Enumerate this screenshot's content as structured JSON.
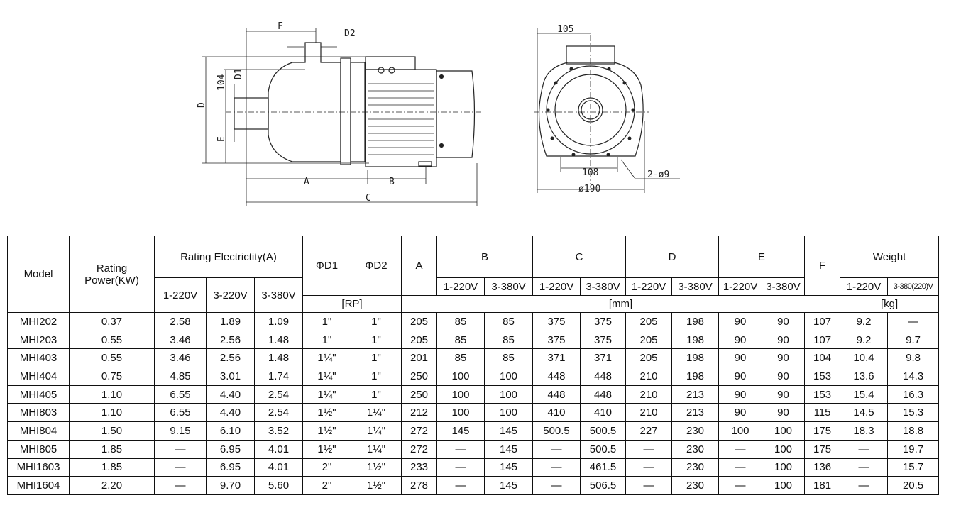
{
  "drawing": {
    "side_labels": {
      "F": "F",
      "D2": "D2",
      "D1": "D1",
      "h104": "104",
      "D": "D",
      "E": "E",
      "A": "A",
      "B": "B",
      "C": "C"
    },
    "front_labels": {
      "w105": "105",
      "w108": "108",
      "d190": "ø190",
      "holes": "2-ø9"
    }
  },
  "table": {
    "headers": {
      "model": "Model",
      "power": "Rating Power(KW)",
      "current": "Rating Electrictity(A)",
      "d1": "ΦD1",
      "d2": "ΦD2",
      "a": "A",
      "b": "B",
      "c": "C",
      "d": "D",
      "e": "E",
      "f": "F",
      "weight": "Weight",
      "current_sub": [
        "1-220V",
        "3-220V",
        "3-380V"
      ],
      "b_sub": [
        "1-220V",
        "3-380V"
      ],
      "c_sub": [
        "1-220V",
        "3-380V"
      ],
      "d_sub": [
        "1-220V",
        "3-380V"
      ],
      "e_sub": [
        "1-220V",
        "3-380V"
      ],
      "weight_sub": [
        "1-220V",
        "3-380(220)V"
      ],
      "unit_rp": "[RP]",
      "unit_mm": "[mm]",
      "unit_kg": "[kg]"
    },
    "rows": [
      [
        "MHI202",
        "0.37",
        "2.58",
        "1.89",
        "1.09",
        "1\"",
        "1\"",
        "205",
        "85",
        "85",
        "375",
        "375",
        "205",
        "198",
        "90",
        "90",
        "107",
        "9.2",
        "—"
      ],
      [
        "MHI203",
        "0.55",
        "3.46",
        "2.56",
        "1.48",
        "1\"",
        "1\"",
        "205",
        "85",
        "85",
        "375",
        "375",
        "205",
        "198",
        "90",
        "90",
        "107",
        "9.2",
        "9.7"
      ],
      [
        "MHI403",
        "0.55",
        "3.46",
        "2.56",
        "1.48",
        "1¼\"",
        "1\"",
        "201",
        "85",
        "85",
        "371",
        "371",
        "205",
        "198",
        "90",
        "90",
        "104",
        "10.4",
        "9.8"
      ],
      [
        "MHI404",
        "0.75",
        "4.85",
        "3.01",
        "1.74",
        "1¼\"",
        "1\"",
        "250",
        "100",
        "100",
        "448",
        "448",
        "210",
        "198",
        "90",
        "90",
        "153",
        "13.6",
        "14.3"
      ],
      [
        "MHI405",
        "1.10",
        "6.55",
        "4.40",
        "2.54",
        "1¼\"",
        "1\"",
        "250",
        "100",
        "100",
        "448",
        "448",
        "210",
        "213",
        "90",
        "90",
        "153",
        "15.4",
        "16.3"
      ],
      [
        "MHI803",
        "1.10",
        "6.55",
        "4.40",
        "2.54",
        "1½\"",
        "1¼\"",
        "212",
        "100",
        "100",
        "410",
        "410",
        "210",
        "213",
        "90",
        "90",
        "115",
        "14.5",
        "15.3"
      ],
      [
        "MHI804",
        "1.50",
        "9.15",
        "6.10",
        "3.52",
        "1½\"",
        "1¼\"",
        "272",
        "145",
        "145",
        "500.5",
        "500.5",
        "227",
        "230",
        "100",
        "100",
        "175",
        "18.3",
        "18.8"
      ],
      [
        "MHI805",
        "1.85",
        "—",
        "6.95",
        "4.01",
        "1½\"",
        "1¼\"",
        "272",
        "—",
        "145",
        "—",
        "500.5",
        "—",
        "230",
        "—",
        "100",
        "175",
        "—",
        "19.7"
      ],
      [
        "MHI1603",
        "1.85",
        "—",
        "6.95",
        "4.01",
        "2\"",
        "1½\"",
        "233",
        "—",
        "145",
        "—",
        "461.5",
        "—",
        "230",
        "—",
        "100",
        "136",
        "—",
        "15.7"
      ],
      [
        "MHI1604",
        "2.20",
        "—",
        "9.70",
        "5.60",
        "2\"",
        "1½\"",
        "278",
        "—",
        "145",
        "—",
        "506.5",
        "—",
        "230",
        "—",
        "100",
        "181",
        "—",
        "20.5"
      ]
    ]
  }
}
